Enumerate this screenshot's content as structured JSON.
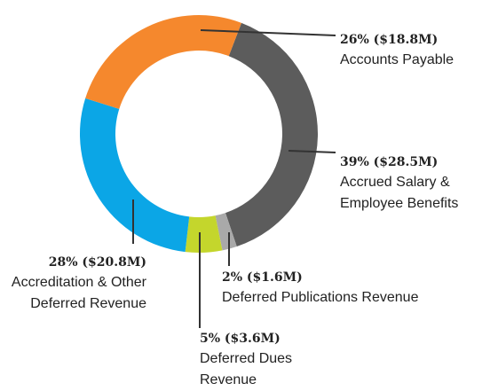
{
  "chart_data": {
    "type": "donut",
    "categories": [
      "Accrued Salary & Employee Benefits",
      "Deferred Publications Revenue",
      "Deferred Dues Revenue",
      "Accreditation & Other Deferred Revenue",
      "Accounts Payable"
    ],
    "values": [
      39,
      2,
      5,
      28,
      26
    ],
    "value_labels": [
      "39% ($28.5M)",
      "2% ($1.6M)",
      "5% ($3.6M)",
      "28% ($20.8M)",
      "26% ($18.8M)"
    ],
    "colors": [
      "#5c5c5c",
      "#a9a9a9",
      "#c4d62c",
      "#0ba6e6",
      "#f5882d"
    ]
  }
}
